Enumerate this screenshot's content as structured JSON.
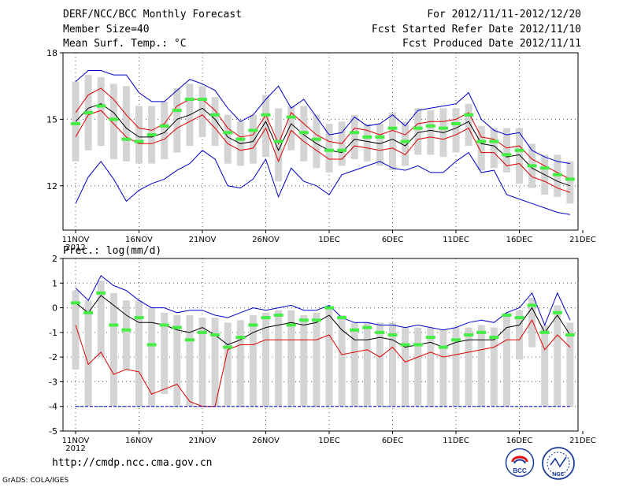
{
  "header": {
    "title_left": "DERF/NCC/BCC Monthly Forecast",
    "member_size": "Member Size=40",
    "variable": "Mean Surf. Temp.: °C",
    "period": "For 2012/11/11-2012/12/20",
    "started": "Fcst Started Refer Date 2012/11/10",
    "produced": "Fcst Produced Date 2012/11/11"
  },
  "footer": {
    "url": "http://cmdp.ncc.cma.gov.cn",
    "grads": "GrADS: COLA/IGES",
    "logo_bcc": "BCC",
    "logo_ncc": "NCC"
  },
  "colors": {
    "envelope": "#0000cc",
    "spread": "#dd0000",
    "mean": "#000000",
    "box": "#d4d4d4",
    "marker": "#44ee44",
    "grid": "#555555"
  },
  "chart_data": [
    {
      "type": "line",
      "title": "Mean Surf. Temp.: °C",
      "x_tick_labels": [
        "11NOV",
        "16NOV",
        "21NOV",
        "26NOV",
        "1DEC",
        "6DEC",
        "11DEC",
        "16DEC",
        "21DEC"
      ],
      "x_tick_days": [
        0,
        5,
        10,
        15,
        20,
        25,
        30,
        35,
        40
      ],
      "x_sub_label": "2012",
      "ylim": [
        10,
        18
      ],
      "y_ticks": [
        12,
        15,
        18
      ],
      "grid": true,
      "days": [
        0,
        1,
        2,
        3,
        4,
        5,
        6,
        7,
        8,
        9,
        10,
        11,
        12,
        13,
        14,
        15,
        16,
        17,
        18,
        19,
        20,
        21,
        22,
        23,
        24,
        25,
        26,
        27,
        28,
        29,
        30,
        31,
        32,
        33,
        34,
        35,
        36,
        37,
        38,
        39
      ],
      "series": [
        {
          "name": "max",
          "values": [
            16.7,
            17.2,
            17.2,
            17.0,
            17.0,
            16.2,
            15.8,
            15.8,
            16.3,
            16.8,
            16.6,
            16.3,
            15.5,
            14.9,
            15.2,
            15.9,
            16.5,
            15.5,
            15.9,
            15.1,
            14.3,
            14.4,
            15.1,
            14.7,
            14.8,
            15.2,
            14.7,
            15.4,
            15.5,
            15.6,
            15.7,
            16.2,
            15.0,
            14.5,
            14.3,
            14.4,
            13.6,
            13.3,
            13.1,
            13.0
          ]
        },
        {
          "name": "upper",
          "values": [
            15.3,
            16.1,
            16.4,
            15.9,
            15.2,
            14.6,
            14.5,
            14.8,
            15.6,
            15.9,
            15.9,
            15.4,
            14.6,
            14.2,
            14.3,
            15.2,
            13.9,
            15.3,
            14.8,
            14.3,
            14.0,
            13.9,
            14.6,
            14.5,
            14.3,
            14.5,
            14.3,
            14.8,
            14.9,
            14.9,
            15.0,
            15.3,
            14.2,
            14.1,
            13.7,
            13.8,
            13.2,
            12.9,
            12.6,
            12.3
          ]
        },
        {
          "name": "mean",
          "values": [
            14.9,
            15.5,
            15.7,
            15.3,
            14.6,
            14.2,
            14.2,
            14.4,
            15.0,
            15.2,
            15.5,
            15.0,
            14.2,
            13.9,
            14.0,
            14.9,
            13.6,
            14.8,
            14.3,
            13.9,
            13.6,
            13.5,
            14.1,
            14.0,
            13.9,
            14.1,
            13.8,
            14.4,
            14.5,
            14.4,
            14.6,
            14.9,
            13.9,
            13.8,
            13.3,
            13.4,
            12.8,
            12.5,
            12.2,
            12.0
          ]
        },
        {
          "name": "lower",
          "values": [
            14.2,
            15.2,
            15.4,
            14.8,
            14.2,
            13.9,
            13.9,
            14.1,
            14.6,
            14.9,
            15.2,
            14.6,
            13.9,
            13.6,
            13.7,
            14.6,
            13.1,
            14.5,
            14.0,
            13.6,
            13.2,
            13.2,
            13.8,
            13.7,
            13.6,
            13.7,
            13.4,
            14.1,
            14.2,
            14.1,
            14.3,
            14.6,
            13.5,
            13.5,
            12.9,
            13.0,
            12.4,
            12.2,
            11.9,
            11.7
          ]
        },
        {
          "name": "min",
          "values": [
            11.2,
            12.4,
            13.1,
            12.3,
            11.3,
            11.8,
            12.1,
            12.3,
            12.7,
            13.0,
            13.6,
            13.2,
            12.0,
            11.9,
            12.3,
            13.2,
            11.5,
            12.8,
            12.2,
            12.0,
            11.6,
            12.5,
            12.7,
            12.9,
            13.1,
            12.8,
            12.7,
            12.9,
            12.6,
            12.6,
            13.1,
            13.5,
            12.6,
            12.7,
            11.6,
            11.4,
            11.2,
            11.0,
            10.8,
            10.7
          ]
        }
      ],
      "boxes": {
        "top": [
          16.7,
          17.0,
          16.9,
          16.6,
          16.5,
          15.6,
          15.6,
          15.8,
          16.4,
          16.6,
          16.5,
          16.0,
          15.2,
          14.9,
          15.2,
          16.1,
          15.5,
          15.6,
          15.6,
          15.2,
          14.8,
          14.9,
          15.2,
          14.8,
          14.8,
          15.3,
          14.9,
          15.5,
          15.4,
          15.5,
          15.5,
          15.7,
          14.7,
          14.6,
          14.6,
          14.6,
          13.9,
          13.4,
          13.4,
          13.1
        ],
        "bottom": [
          13.1,
          13.6,
          13.8,
          13.2,
          13.1,
          13.0,
          13.0,
          13.2,
          13.5,
          13.8,
          14.2,
          13.8,
          13.0,
          12.9,
          13.0,
          13.3,
          12.2,
          13.6,
          13.1,
          12.8,
          12.6,
          12.9,
          13.2,
          13.1,
          12.9,
          12.7,
          12.9,
          13.4,
          13.4,
          13.3,
          13.5,
          13.8,
          12.7,
          12.8,
          12.6,
          12.1,
          11.9,
          11.6,
          11.5,
          11.2
        ]
      },
      "markers": [
        14.8,
        15.3,
        15.6,
        15.0,
        14.1,
        14.0,
        14.3,
        14.7,
        15.4,
        15.9,
        15.9,
        15.2,
        14.4,
        14.1,
        14.5,
        15.2,
        14.0,
        15.1,
        14.4,
        14.1,
        13.6,
        13.6,
        14.4,
        14.2,
        14.2,
        14.6,
        14.0,
        14.6,
        14.7,
        14.6,
        14.8,
        15.2,
        14.0,
        14.0,
        13.4,
        13.6,
        12.9,
        12.8,
        12.5,
        12.3
      ]
    },
    {
      "type": "line",
      "title": "Prec.: log(mm/d)",
      "x_tick_labels": [
        "11NOV",
        "16NOV",
        "21NOV",
        "26NOV",
        "1DEC",
        "6DEC",
        "11DEC",
        "16DEC",
        "21DEC"
      ],
      "x_tick_days": [
        0,
        5,
        10,
        15,
        20,
        25,
        30,
        35,
        40
      ],
      "x_sub_label": "2012",
      "ylim": [
        -5,
        2
      ],
      "y_ticks": [
        -5,
        -4,
        -3,
        -2,
        -1,
        0,
        1,
        2
      ],
      "grid": true,
      "days": [
        0,
        1,
        2,
        3,
        4,
        5,
        6,
        7,
        8,
        9,
        10,
        11,
        12,
        13,
        14,
        15,
        16,
        17,
        18,
        19,
        20,
        21,
        22,
        23,
        24,
        25,
        26,
        27,
        28,
        29,
        30,
        31,
        32,
        33,
        34,
        35,
        36,
        37,
        38,
        39
      ],
      "series": [
        {
          "name": "max",
          "values": [
            0.8,
            0.3,
            1.3,
            0.9,
            0.7,
            0.3,
            0.0,
            0.0,
            -0.2,
            -0.1,
            -0.1,
            -0.3,
            -0.4,
            -0.2,
            0.0,
            -0.1,
            0.0,
            0.1,
            -0.1,
            -0.1,
            0.1,
            -0.4,
            -0.6,
            -0.6,
            -0.7,
            -0.7,
            -0.8,
            -0.7,
            -0.8,
            -0.9,
            -0.8,
            -0.6,
            -0.5,
            -0.6,
            -0.2,
            0.0,
            0.6,
            -0.7,
            0.6,
            -0.5
          ]
        },
        {
          "name": "mean",
          "values": [
            0.2,
            -0.2,
            0.5,
            0.1,
            -0.3,
            -0.6,
            -0.6,
            -0.7,
            -0.9,
            -1.0,
            -0.8,
            -1.1,
            -1.5,
            -1.3,
            -1.0,
            -0.8,
            -0.7,
            -0.6,
            -0.7,
            -0.6,
            -0.3,
            -0.9,
            -1.3,
            -1.3,
            -1.2,
            -1.3,
            -1.6,
            -1.5,
            -1.4,
            -1.6,
            -1.4,
            -1.3,
            -1.3,
            -1.3,
            -0.8,
            -0.7,
            0.0,
            -1.0,
            -0.3,
            -1.1
          ]
        },
        {
          "name": "lower",
          "values": [
            -0.7,
            -2.3,
            -1.8,
            -2.7,
            -2.5,
            -2.6,
            -3.5,
            -3.3,
            -3.1,
            -3.8,
            -4.0,
            -4.0,
            -1.7,
            -1.5,
            -1.5,
            -1.3,
            -1.3,
            -1.3,
            -1.3,
            -1.3,
            -1.1,
            -1.9,
            -1.8,
            -1.7,
            -2.0,
            -1.6,
            -2.2,
            -2.0,
            -1.8,
            -2.0,
            -1.9,
            -1.8,
            -1.7,
            -1.6,
            -1.3,
            -1.3,
            -0.5,
            -1.7,
            -1.1,
            -1.6
          ]
        },
        {
          "name": "min",
          "values": [
            -4.0,
            -4.0,
            -4.0,
            -4.0,
            -4.0,
            -4.0,
            -4.0,
            -4.0,
            -4.0,
            -4.0,
            -4.0,
            -4.0,
            -4.0,
            -4.0,
            -4.0,
            -4.0,
            -4.0,
            -4.0,
            -4.0,
            -4.0,
            -4.0,
            -4.0,
            -4.0,
            -4.0,
            -4.0,
            -4.0,
            -4.0,
            -4.0,
            -4.0,
            -4.0,
            -4.0,
            -4.0,
            -4.0,
            -4.0,
            -4.0,
            -4.0,
            -4.0,
            -4.0,
            -4.0,
            -4.0
          ]
        }
      ],
      "boxes": {
        "top": [
          0.7,
          0.3,
          1.1,
          0.6,
          0.3,
          0.3,
          0.0,
          -0.2,
          -0.3,
          -0.3,
          -0.4,
          -0.4,
          -0.6,
          -0.5,
          -0.3,
          -0.2,
          -0.1,
          -0.1,
          -0.3,
          -0.2,
          0.0,
          -0.3,
          -0.6,
          -0.6,
          -0.6,
          -0.6,
          -0.8,
          -0.8,
          -0.8,
          -0.9,
          -0.8,
          -0.8,
          -0.7,
          -0.8,
          -0.2,
          -0.1,
          0.4,
          -0.7,
          0.1,
          -0.6
        ],
        "bottom": [
          -2.5,
          -4.0,
          -2.0,
          -4.0,
          -2.5,
          -4.0,
          -4.0,
          -3.5,
          -4.0,
          -4.0,
          -4.0,
          -4.0,
          -4.0,
          -4.0,
          -4.0,
          -4.0,
          -4.0,
          -4.0,
          -4.0,
          -4.0,
          -4.0,
          -4.0,
          -4.0,
          -4.0,
          -4.0,
          -4.0,
          -4.0,
          -4.0,
          -4.0,
          -4.0,
          -4.0,
          -4.0,
          -4.0,
          -4.0,
          -4.0,
          -2.1,
          -1.6,
          -4.0,
          -4.0,
          -4.0
        ]
      },
      "markers": [
        0.2,
        -0.2,
        0.6,
        -0.7,
        -0.9,
        -0.4,
        -1.5,
        -0.7,
        -0.8,
        -1.3,
        -1.0,
        -1.1,
        -1.6,
        -1.2,
        -0.7,
        -0.4,
        -0.3,
        -0.7,
        -0.5,
        -0.5,
        0.0,
        -0.4,
        -0.9,
        -0.8,
        -1.0,
        -1.1,
        -1.5,
        -1.5,
        -1.2,
        -1.6,
        -1.3,
        -1.1,
        -1.0,
        -1.2,
        -0.3,
        -0.4,
        0.1,
        -1.0,
        -0.2,
        -1.1
      ]
    }
  ]
}
